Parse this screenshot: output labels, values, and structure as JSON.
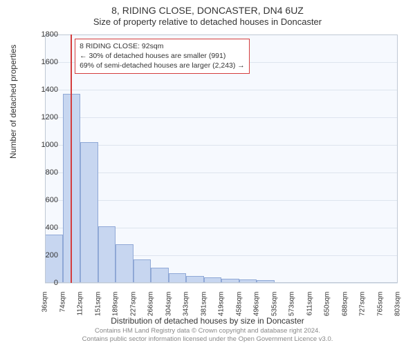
{
  "title": "8, RIDING CLOSE, DONCASTER, DN4 6UZ",
  "subtitle": "Size of property relative to detached houses in Doncaster",
  "ylabel": "Number of detached properties",
  "xlabel": "Distribution of detached houses by size in Doncaster",
  "footer_line1": "Contains HM Land Registry data © Crown copyright and database right 2024.",
  "footer_line2": "Contains public sector information licensed under the Open Government Licence v3.0.",
  "footer_color": "#888888",
  "chart": {
    "type": "histogram",
    "plot_bg": "#f6f9fe",
    "grid_color": "#dde4ee",
    "axis_border_color": "#bfc8d4",
    "bar_fill": "#c7d6f0",
    "bar_stroke": "#8fa8d6",
    "marker_color": "#d43b3b",
    "marker_x_value": 92,
    "ylim": [
      0,
      1800
    ],
    "ytick_step": 200,
    "x_start": 36,
    "x_bin_width": 38.5,
    "x_tick_labels": [
      "36sqm",
      "74sqm",
      "112sqm",
      "151sqm",
      "189sqm",
      "227sqm",
      "266sqm",
      "304sqm",
      "343sqm",
      "381sqm",
      "419sqm",
      "458sqm",
      "496sqm",
      "535sqm",
      "573sqm",
      "611sqm",
      "650sqm",
      "688sqm",
      "727sqm",
      "765sqm",
      "803sqm"
    ],
    "values": [
      350,
      1370,
      1020,
      410,
      280,
      170,
      110,
      70,
      50,
      40,
      30,
      25,
      18,
      0,
      0,
      0,
      0,
      0,
      0,
      0
    ]
  },
  "legend": {
    "border_color": "#d43b3b",
    "line1": "8 RIDING CLOSE: 92sqm",
    "line2": "← 30% of detached houses are smaller (991)",
    "line3": "69% of semi-detached houses are larger (2,243) →"
  }
}
